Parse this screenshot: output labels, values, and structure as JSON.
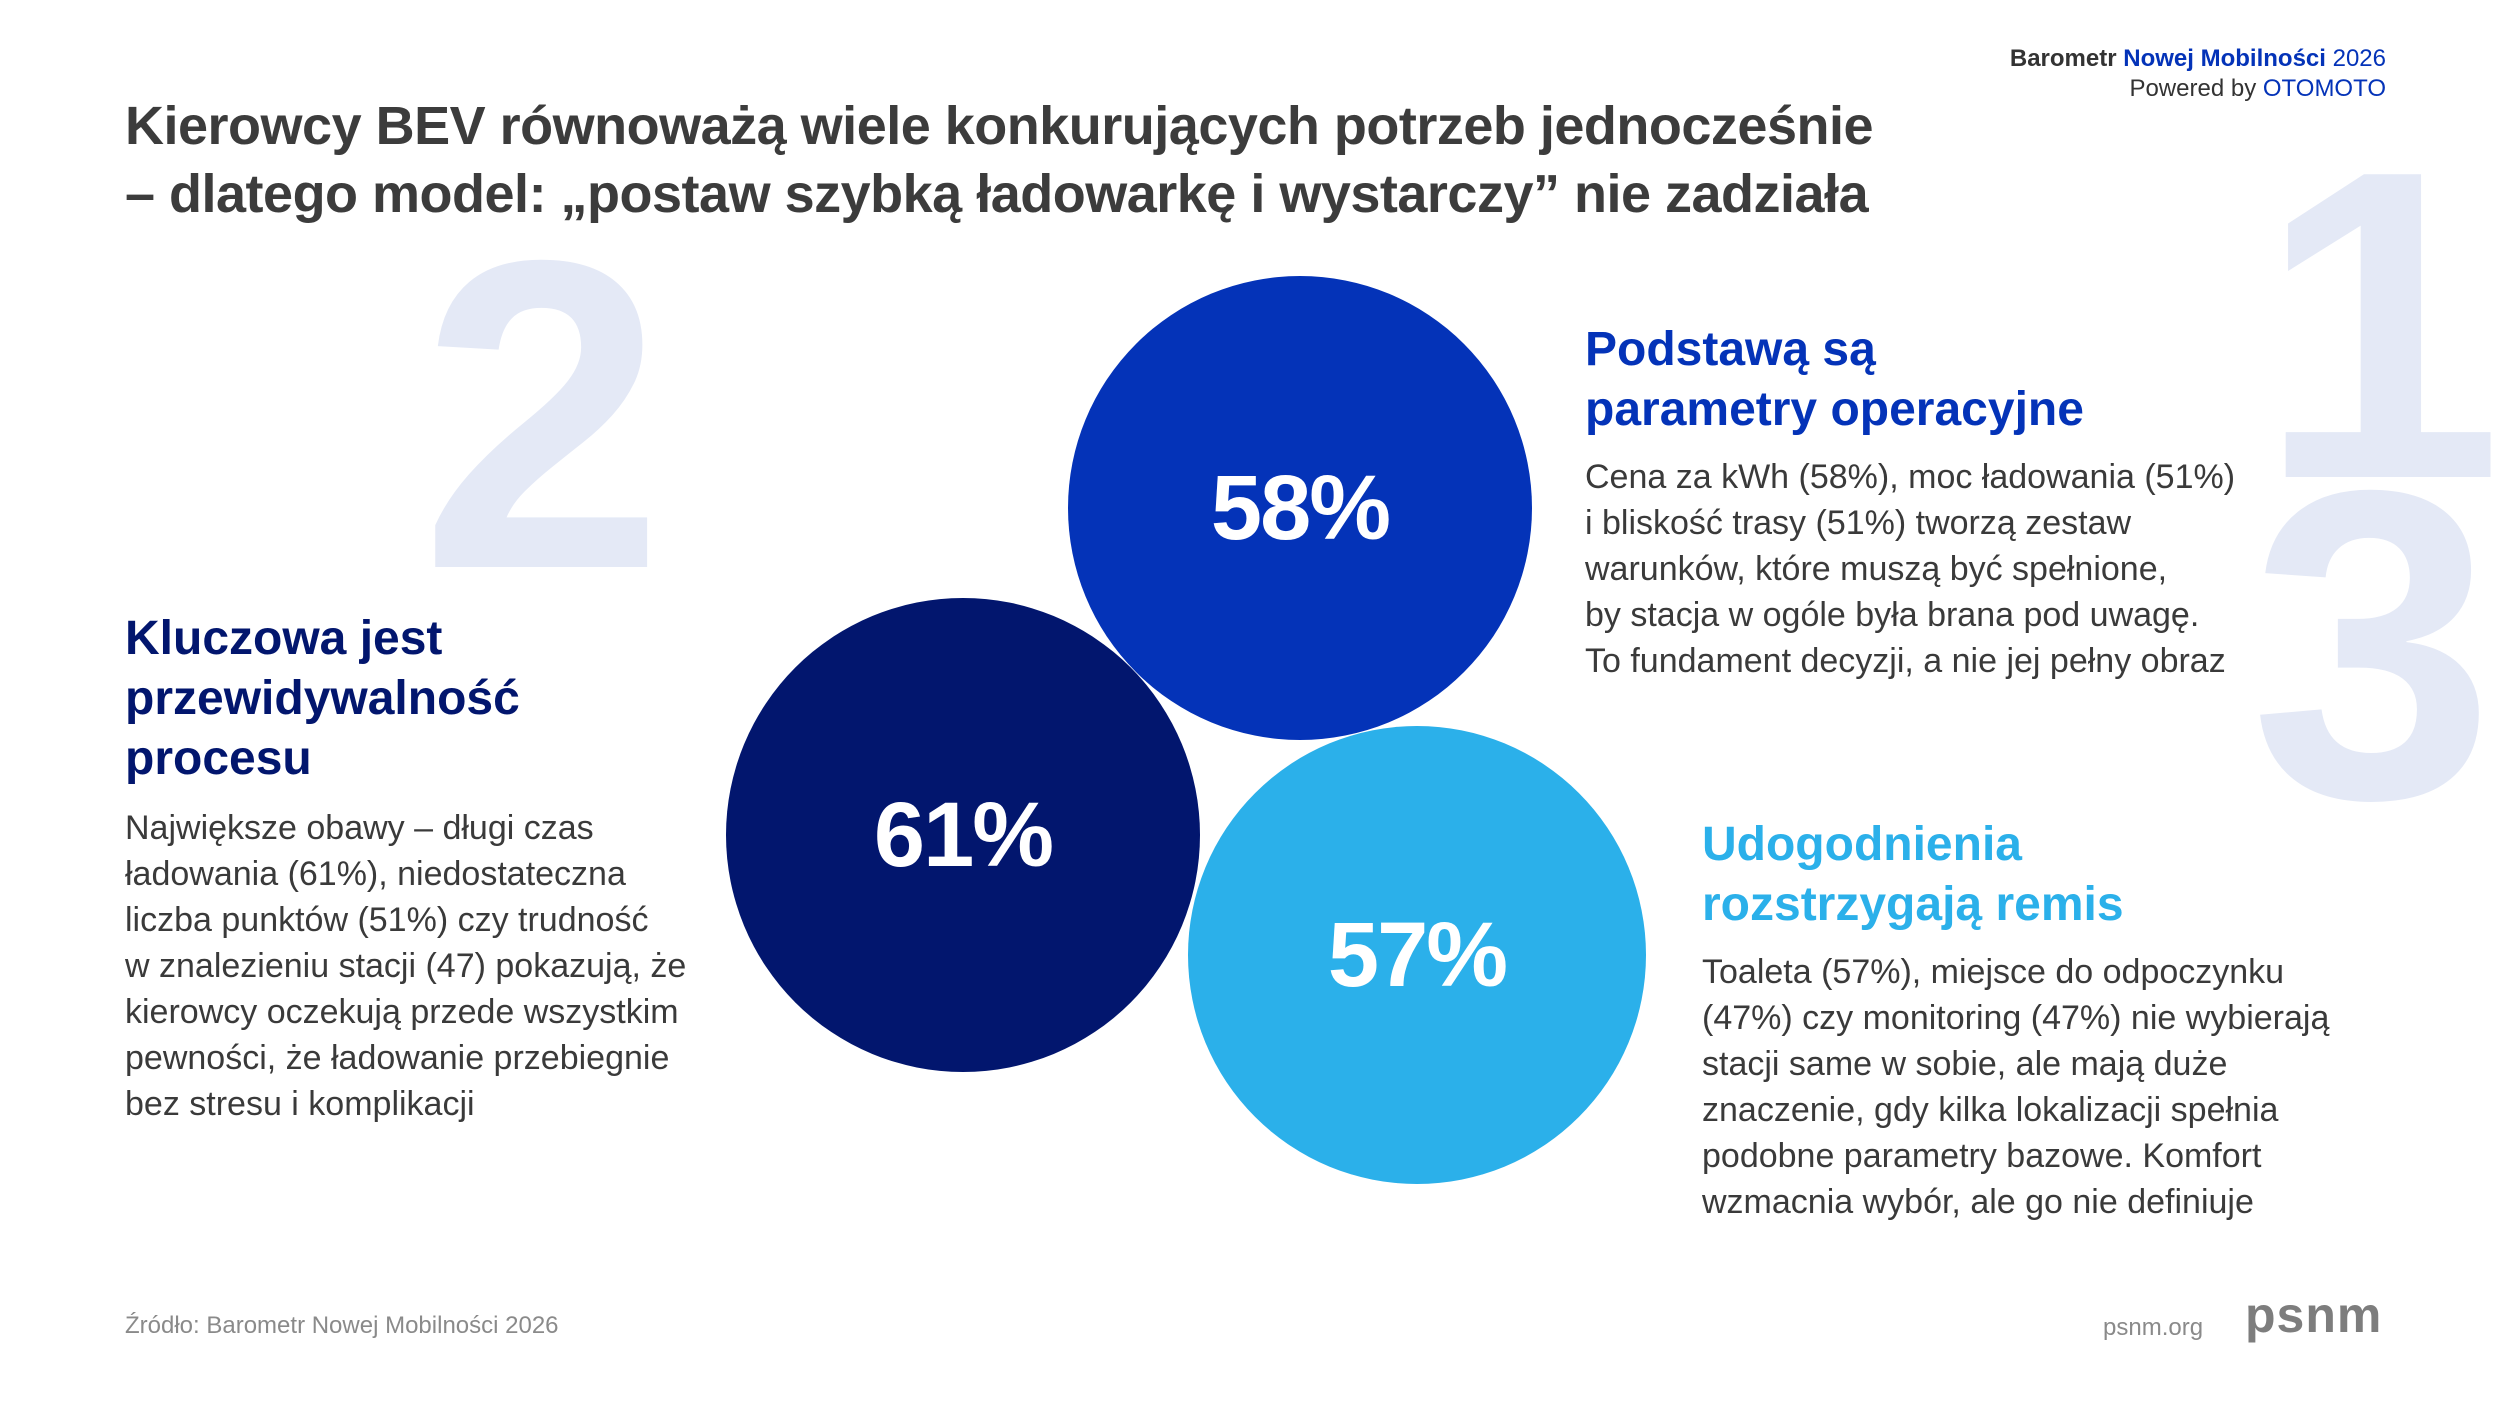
{
  "header": {
    "title_line1": "Kierowcy BEV równoważą wiele konkurujących potrzeb jednocześnie",
    "title_line2": "– dlatego model: „postaw szybką ładowarkę i wystarczy” nie zadziała",
    "brand_prefix": "Barometr",
    "brand_name": "Nowej Mobilności",
    "brand_year": "2026",
    "powered_prefix": "Powered by",
    "powered_brand": "OTOMOTO"
  },
  "colors": {
    "circle_1": "#0433b8",
    "circle_2": "#02166e",
    "circle_3": "#2bb0ea",
    "big_number": "#e4e9f6"
  },
  "blocks": [
    {
      "number": "1",
      "percent": "58%",
      "heading": "Podstawą są\nparametry operacyjne",
      "body": "Cena za kWh (58%), moc ładowania (51%)\ni bliskość trasy (51%) tworzą zestaw\nwarunków, które muszą być spełnione,\nby stacja w ogóle była brana pod uwagę.\nTo fundament decyzji, a nie jej pełny obraz"
    },
    {
      "number": "2",
      "percent": "61%",
      "heading": "Kluczowa jest\nprzewidywalność\nprocesu",
      "body": "Największe obawy – długi czas\nładowania (61%), niedostateczna\nliczba punktów (51%) czy trudność\nw znalezieniu stacji (47) pokazują, że\nkierowcy oczekują przede wszystkim\npewności, że ładowanie przebiegnie\nbez stresu i komplikacji"
    },
    {
      "number": "3",
      "percent": "57%",
      "heading": "Udogodnienia\nrozstrzygają remis",
      "body": "Toaleta (57%), miejsce do odpoczynku\n(47%) czy monitoring (47%) nie wybierają\nstacji same w sobie, ale mają duże\nznaczenie, gdy kilka lokalizacji spełnia\npodobne parametry bazowe. Komfort\nwzmacnia wybór, ale go nie definiuje"
    }
  ],
  "footer": {
    "source": "Źródło: Barometr Nowej Mobilności 2026",
    "site": "psnm.org",
    "logo_text": "psnm"
  }
}
